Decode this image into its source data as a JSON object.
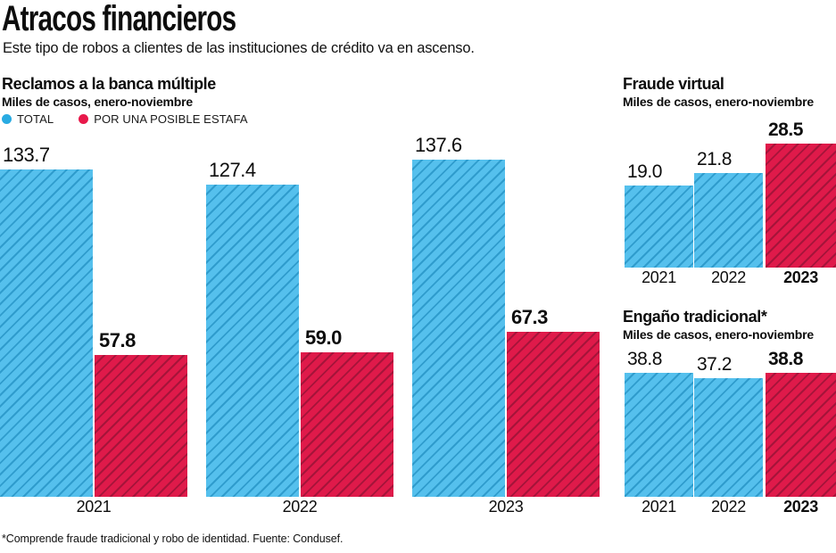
{
  "page": {
    "title": "Atracos financieros",
    "subtitle": "Este tipo de robos a clientes de las instituciones de crédito va en ascenso.",
    "footnote": "*Comprende fraude tradicional y robo de identidad. Fuente: Condusef."
  },
  "colors": {
    "blue_bar": "#55c0ed",
    "blue_stripe": "#2f9ccd",
    "red_bar": "#df1a4a",
    "red_stripe": "#a5143a",
    "legend_blue_dot": "#29abe2",
    "legend_red_dot": "#e8194b"
  },
  "chart_data": [
    {
      "id": "reclamos-banca-multiple",
      "type": "bar",
      "title": "Reclamos a la banca múltiple",
      "subtitle": "Miles de casos, enero-noviembre",
      "categories": [
        "2021",
        "2022",
        "2023"
      ],
      "series": [
        {
          "name": "TOTAL",
          "color_key": "blue",
          "values": [
            133.7,
            127.4,
            137.6
          ]
        },
        {
          "name": "POR UNA POSIBLE ESTAFA",
          "color_key": "red",
          "values": [
            57.8,
            59.0,
            67.3
          ]
        }
      ],
      "legend_position": "top-left",
      "grid": false,
      "ylim": [
        0,
        148
      ]
    },
    {
      "id": "fraude-virtual",
      "type": "bar",
      "title": "Fraude virtual",
      "subtitle": "Miles de casos, enero-noviembre",
      "categories": [
        "2021",
        "2022",
        "2023"
      ],
      "values": [
        19.0,
        21.8,
        28.5
      ],
      "bar_color_keys": [
        "blue",
        "blue",
        "red"
      ],
      "highlight_category": "2023",
      "grid": false,
      "ylim": [
        0,
        30
      ]
    },
    {
      "id": "engano-tradicional",
      "type": "bar",
      "title": "Engaño tradicional*",
      "subtitle": "Miles de casos, enero-noviembre",
      "categories": [
        "2021",
        "2022",
        "2023"
      ],
      "values": [
        38.8,
        37.2,
        38.8
      ],
      "bar_color_keys": [
        "blue",
        "blue",
        "red"
      ],
      "highlight_category": "2023",
      "grid": false,
      "ylim": [
        0,
        41
      ]
    }
  ]
}
